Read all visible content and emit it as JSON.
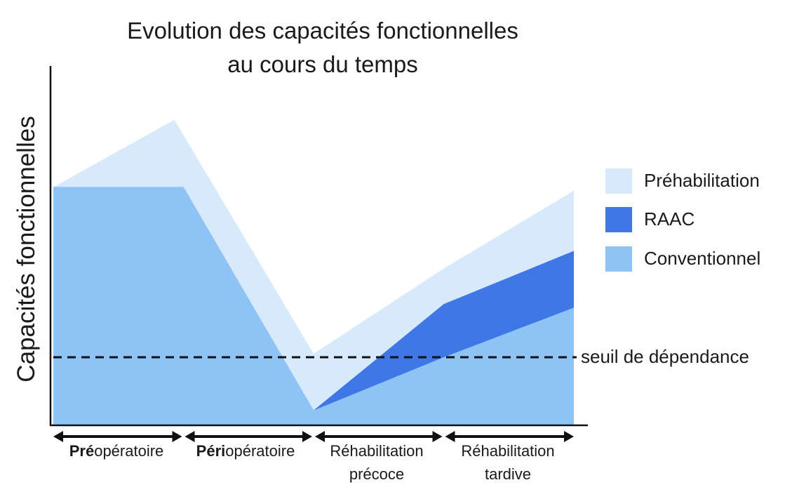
{
  "chart_data": {
    "type": "area",
    "title_lines": [
      "Evolution des capacités fonctionnelles",
      "au cours du temps"
    ],
    "ylabel": "Capacités fonctionnelles",
    "x": [
      0,
      1,
      2,
      3,
      4
    ],
    "phases": [
      {
        "bold": "Pré",
        "rest": "opératoire",
        "line2": ""
      },
      {
        "bold": "Péri",
        "rest": "opératoire",
        "line2": ""
      },
      {
        "bold": "",
        "rest": "Réhabilitation",
        "line2": "précoce"
      },
      {
        "bold": "",
        "rest": "Réhabilitation",
        "line2": "tardive"
      }
    ],
    "series": [
      {
        "name": "Préhabilitation",
        "color": "#d6eafb",
        "points": [
          [
            0,
            67
          ],
          [
            0.93,
            86
          ],
          [
            2,
            20
          ],
          [
            3,
            44
          ],
          [
            4,
            66
          ]
        ]
      },
      {
        "name": "RAAC",
        "color": "#3f78e6",
        "points": [
          [
            0,
            67
          ],
          [
            1,
            67
          ],
          [
            2,
            4
          ],
          [
            3,
            34
          ],
          [
            4,
            49
          ]
        ]
      },
      {
        "name": "Conventionnel",
        "color": "#8ec3f5",
        "points": [
          [
            0,
            67
          ],
          [
            1,
            67
          ],
          [
            2,
            4
          ],
          [
            3,
            19
          ],
          [
            4,
            33
          ]
        ]
      }
    ],
    "threshold": {
      "label": "seuil de dépendance",
      "y": 19
    },
    "ylim": [
      0,
      100
    ],
    "xlim": [
      0,
      4
    ],
    "grid": false,
    "legend": "right"
  }
}
